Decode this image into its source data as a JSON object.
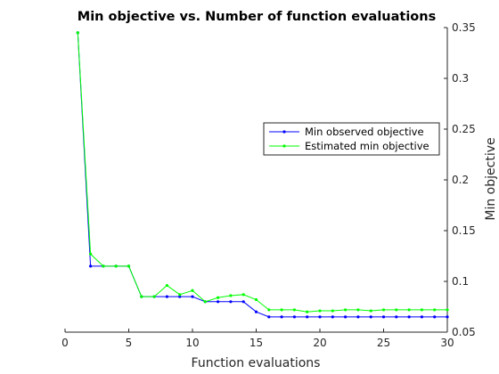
{
  "chart_data": {
    "type": "line",
    "title": "Min objective vs. Number of function evaluations",
    "xlabel": "Function evaluations",
    "ylabel": "Min objective",
    "xlim": [
      0,
      30
    ],
    "ylim": [
      0.05,
      0.35
    ],
    "xticks": [
      "0",
      "5",
      "10",
      "15",
      "20",
      "25",
      "30"
    ],
    "yticks": [
      "0.05",
      "0.1",
      "0.15",
      "0.2",
      "0.25",
      "0.3",
      "0.35"
    ],
    "y_axis_side": "right",
    "grid": false,
    "legend_position": "right",
    "x": [
      1,
      2,
      3,
      4,
      5,
      6,
      7,
      8,
      9,
      10,
      11,
      12,
      13,
      14,
      15,
      16,
      17,
      18,
      19,
      20,
      21,
      22,
      23,
      24,
      25,
      26,
      27,
      28,
      29,
      30
    ],
    "series": [
      {
        "name": "Min observed objective",
        "color": "#0000ff",
        "values": [
          0.345,
          0.115,
          0.115,
          0.115,
          0.115,
          0.085,
          0.085,
          0.085,
          0.085,
          0.085,
          0.08,
          0.08,
          0.08,
          0.08,
          0.07,
          0.065,
          0.065,
          0.065,
          0.065,
          0.065,
          0.065,
          0.065,
          0.065,
          0.065,
          0.065,
          0.065,
          0.065,
          0.065,
          0.065,
          0.065
        ]
      },
      {
        "name": "Estimated min objective",
        "color": "#00ff00",
        "values": [
          0.345,
          0.127,
          0.115,
          0.115,
          0.115,
          0.085,
          0.085,
          0.096,
          0.087,
          0.091,
          0.08,
          0.084,
          0.086,
          0.087,
          0.082,
          0.072,
          0.072,
          0.072,
          0.07,
          0.071,
          0.071,
          0.072,
          0.072,
          0.071,
          0.072,
          0.072,
          0.072,
          0.072,
          0.072,
          0.072
        ]
      }
    ]
  }
}
